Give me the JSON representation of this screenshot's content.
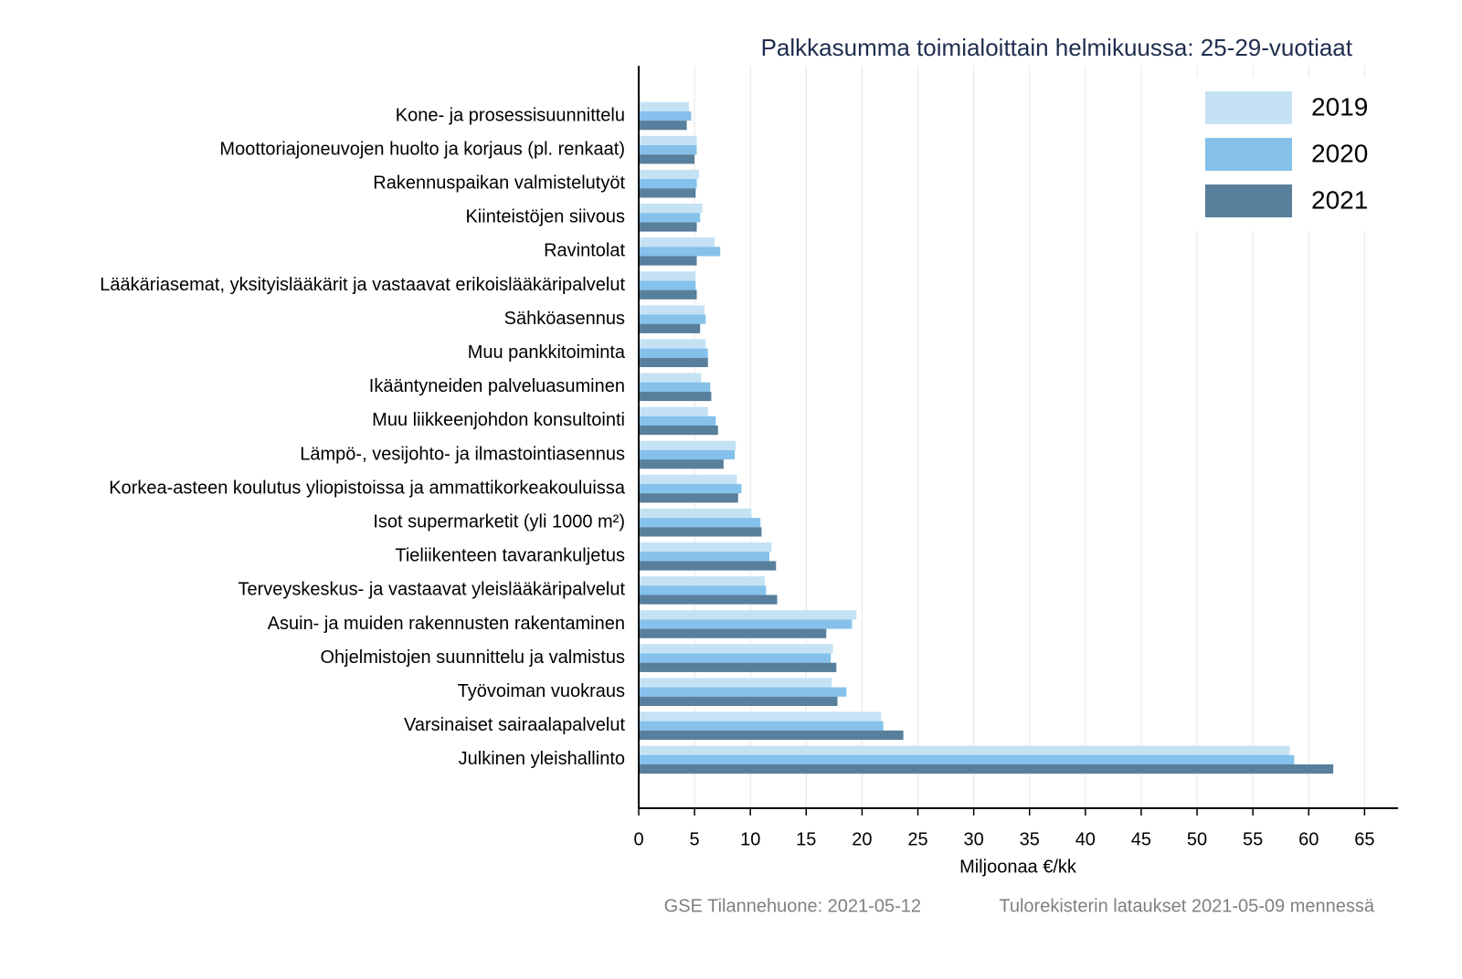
{
  "chart_data": {
    "type": "hbar",
    "title": "Palkkasumma toimialoittain helmikuussa: 25-29-vuotiaat",
    "x_label": "Miljoonaa €/kk",
    "source": "GSE Tilannehuone: 2021-05-12",
    "note": "Tulorekisterin lataukset 2021-05-09 mennessä",
    "categories": [
      "Kone- ja prosessisuunnittelu",
      "Moottoriajoneuvojen huolto ja korjaus (pl. renkaat)",
      "Rakennuspaikan valmistelutyöt",
      "Kiinteistöjen siivous",
      "Ravintolat",
      "Lääkäriasemat, yksityislääkärit ja vastaavat erikoislääkäripalvelut",
      "Sähköasennus",
      "Muu pankkitoiminta",
      "Ikääntyneiden palveluasuminen",
      "Muu liikkeenjohdon konsultointi",
      "Lämpö-, vesijohto- ja ilmastointiasennus",
      "Korkea-asteen koulutus yliopistoissa ja ammattikorkeakouluissa",
      "Isot supermarketit (yli 1000 m²)",
      "Tieliikenteen tavarankuljetus",
      "Terveyskeskus- ja vastaavat yleislääkäripalvelut",
      "Asuin- ja muiden rakennusten rakentaminen",
      "Ohjelmistojen suunnittelu ja valmistus",
      "Työvoiman vuokraus",
      "Varsinaiset sairaalapalvelut",
      "Julkinen yleishallinto"
    ],
    "series": [
      {
        "name": "2019",
        "color": "#c5e2f5",
        "values": [
          4.5,
          5.2,
          5.4,
          5.7,
          6.8,
          5.1,
          5.9,
          6.0,
          5.6,
          6.2,
          8.7,
          8.8,
          10.1,
          11.9,
          11.3,
          19.5,
          17.4,
          17.3,
          21.7,
          58.3
        ]
      },
      {
        "name": "2020",
        "color": "#85c1eb",
        "values": [
          4.7,
          5.2,
          5.2,
          5.5,
          7.3,
          5.1,
          6.0,
          6.2,
          6.4,
          6.9,
          8.6,
          9.2,
          10.9,
          11.7,
          11.4,
          19.1,
          17.2,
          18.6,
          21.9,
          58.7
        ]
      },
      {
        "name": "2021",
        "color": "#587f9c",
        "values": [
          4.3,
          5.0,
          5.1,
          5.2,
          5.2,
          5.2,
          5.5,
          6.2,
          6.5,
          7.1,
          7.6,
          8.9,
          11.0,
          12.3,
          12.4,
          16.8,
          17.7,
          17.8,
          23.7,
          62.2
        ]
      }
    ],
    "xlim": [
      0,
      68
    ],
    "xticks": [
      0,
      5,
      10,
      15,
      20,
      25,
      30,
      35,
      40,
      45,
      50,
      55,
      60,
      65
    ],
    "grid": true,
    "legend": "top-right"
  }
}
